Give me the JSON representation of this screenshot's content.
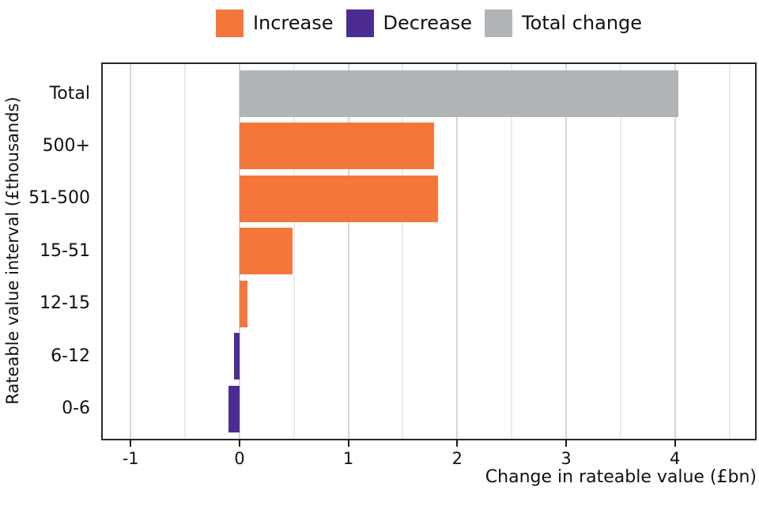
{
  "chart_data": {
    "type": "bar",
    "orientation": "horizontal",
    "title": "",
    "xlabel": "Change in rateable value (£bn)",
    "ylabel": "Rateable value interval (£thousands)",
    "categories": [
      "Total",
      "500+",
      "51-500",
      "15-51",
      "12-15",
      "6-12",
      "0-6"
    ],
    "values": [
      4.03,
      1.79,
      1.82,
      0.49,
      0.07,
      -0.05,
      -0.1
    ],
    "bar_groups": [
      "total_change",
      "increase",
      "increase",
      "increase",
      "increase",
      "decrease",
      "decrease"
    ],
    "xlim": [
      -1.27,
      4.75
    ],
    "xticks": [
      -1,
      0,
      1,
      2,
      3,
      4
    ],
    "gridline_step": 0.5,
    "grid": "vertical-only",
    "legend": {
      "position": "top-center",
      "entries": [
        {
          "label": "Increase",
          "group": "increase"
        },
        {
          "label": "Decrease",
          "group": "decrease"
        },
        {
          "label": "Total change",
          "group": "total_change"
        }
      ]
    },
    "colors": {
      "increase": "#f4763b",
      "decrease": "#4c2c92",
      "total_change": "#b1b4b6",
      "minor_grid": "#ebebeb",
      "major_grid": "#d6d6d6",
      "frame": "#25272b",
      "text": "#111111"
    }
  }
}
